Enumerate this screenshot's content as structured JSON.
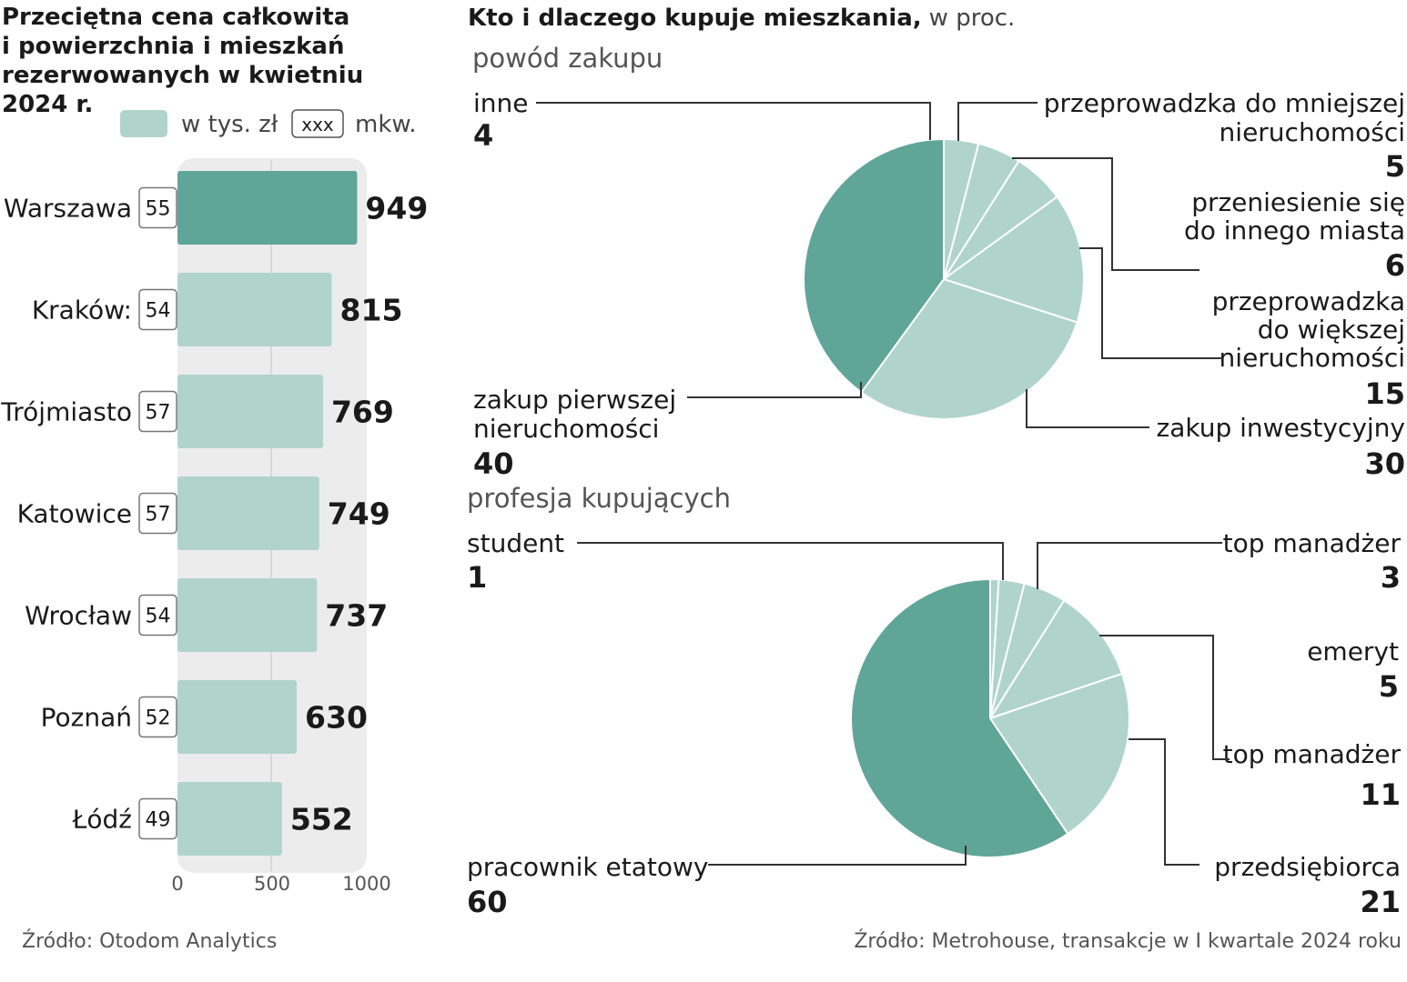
{
  "left_chart": {
    "title_lines": [
      "Przeciętna cena całkowita",
      "i powierzchnia i mieszkań",
      "rezerwowanych w kwietniu",
      "2024 r."
    ],
    "legend_price": "w tys. zł",
    "legend_area_box": "xxx",
    "legend_area": "mkw.",
    "source": "Źródło: Otodom Analytics"
  },
  "right_chart": {
    "title": "Kto i dlaczego kupuje mieszkania,",
    "title_unit": "w proc.",
    "source": "Źródło: Metrohouse, transakcje w I kwartale 2024 roku"
  },
  "colors": {
    "dark": "#5fa598",
    "light": "#b0d4cc",
    "track": "#ececec",
    "text": "#1a1a1a"
  },
  "chart_data": [
    {
      "type": "bar",
      "orientation": "horizontal",
      "title": "Przeciętna cena całkowita i powierzchnia i mieszkań rezerwowanych w kwietniu 2024 r.",
      "categories": [
        "Warszawa",
        "Kraków:",
        "Trójmiasto",
        "Katowice",
        "Wrocław",
        "Poznań",
        "Łódź"
      ],
      "values": [
        949,
        815,
        769,
        749,
        737,
        630,
        552
      ],
      "area_values": [
        55,
        54,
        57,
        57,
        54,
        52,
        49
      ],
      "unit": "w tys. zł",
      "xlim": [
        0,
        1000
      ],
      "xticks": [
        0,
        500,
        1000
      ],
      "highlight_index": 0
    },
    {
      "type": "pie",
      "title": "powód zakupu",
      "slices": [
        {
          "label": "inne",
          "value": 4,
          "shade": "light"
        },
        {
          "label": "przeprowadzka do mniejszej nieruchomości",
          "value": 5,
          "shade": "light",
          "label_lines": [
            "przeprowadzka do mniejszej",
            "nieruchomości"
          ]
        },
        {
          "label": "przeniesienie się do innego miasta",
          "value": 6,
          "shade": "light",
          "label_lines": [
            "przeniesienie się",
            "do innego miasta"
          ]
        },
        {
          "label": "przeprowadzka do większej nieruchomości",
          "value": 15,
          "shade": "light",
          "label_lines": [
            "przeprowadzka",
            "do większej",
            "nieruchomości"
          ]
        },
        {
          "label": "zakup inwestycyjny",
          "value": 30,
          "shade": "light"
        },
        {
          "label": "zakup pierwszej nieruchomości",
          "value": 40,
          "shade": "dark",
          "label_lines": [
            "zakup pierwszej",
            "nieruchomości"
          ]
        }
      ]
    },
    {
      "type": "pie",
      "title": "profesja kupujących",
      "slices": [
        {
          "label": "student",
          "value": 1,
          "shade": "light"
        },
        {
          "label": "top manadżer",
          "value": 3,
          "shade": "light"
        },
        {
          "label": "emeryt",
          "value": 5,
          "shade": "light"
        },
        {
          "label": "top manadżer",
          "value": 11,
          "shade": "light"
        },
        {
          "label": "przedsiębiorca",
          "value": 21,
          "shade": "light"
        },
        {
          "label": "pracownik etatowy",
          "value": 60,
          "shade": "dark"
        }
      ]
    }
  ]
}
